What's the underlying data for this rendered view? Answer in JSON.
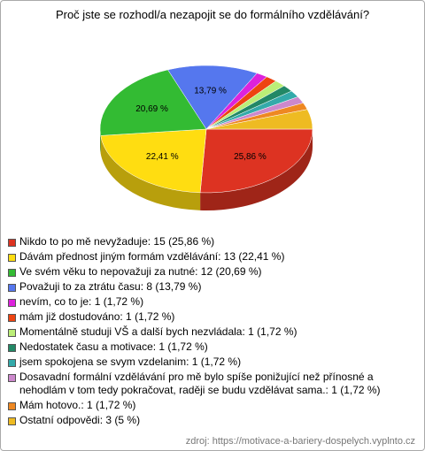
{
  "chart_data": {
    "type": "pie",
    "title": "Proč jste se rozhodl/a nezapojit se do formálního vzdělávání?",
    "categories": [
      "Nikdo to po mě nevyžaduje: 15 (25,86 %)",
      "Dávám přednost jiným formám vzdělávání: 13 (22,41 %)",
      "Ve svém věku to nepovažuji za nutné: 12 (20,69 %)",
      "Považuji to za ztrátu času: 8 (13,79 %)",
      "nevím, co to je: 1 (1,72 %)",
      "mám již dostudováno: 1 (1,72 %)",
      "Momentálně studuji VŠ a další bych nezvládala: 1 (1,72 %)",
      "Nedostatek času a motivace: 1 (1,72 %)",
      "jsem spokojena se svym vzdelanim: 1 (1,72 %)",
      "Dosavadní formální vzdělávání pro mě bylo spíše ponižující než přínosné a nehodlám v tom tedy pokračovat, raději se budu vzdělávat sama.: 1 (1,72 %)",
      "Mám hotovo.: 1 (1,72 %)",
      "Ostatní odpovědi: 3 (5 %)"
    ],
    "values": [
      25.86,
      22.41,
      20.69,
      13.79,
      1.72,
      1.72,
      1.72,
      1.72,
      1.72,
      1.72,
      1.72,
      5
    ],
    "value_labels": [
      "25,86 %",
      "22,41 %",
      "20,69 %",
      "13,79 %",
      null,
      null,
      null,
      null,
      null,
      null,
      null,
      null
    ],
    "colors": [
      "#dd3322",
      "#ffdd11",
      "#33bb33",
      "#5577ee",
      "#dd22dd",
      "#ee4411",
      "#bbee77",
      "#228866",
      "#33aaaa",
      "#cc88cc",
      "#ee8822",
      "#eebb22"
    ],
    "source": "zdroj: https://motivace-a-bariery-dospelych.vyplnto.cz"
  }
}
